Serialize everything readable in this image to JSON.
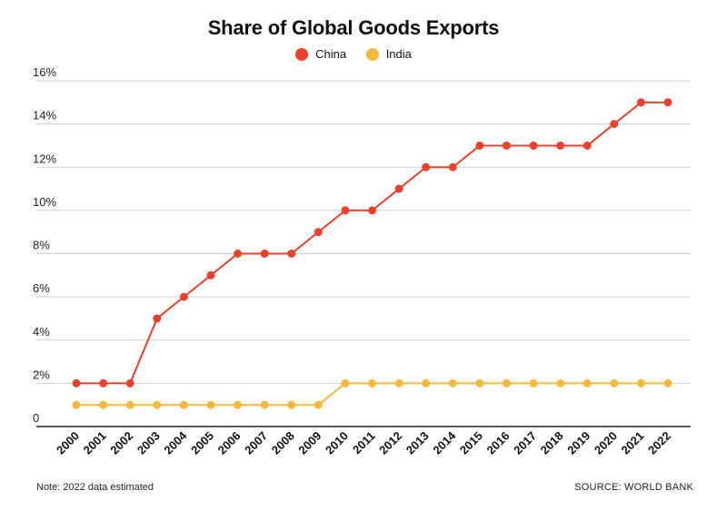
{
  "chart_data": {
    "type": "line",
    "title": "Share of Global Goods Exports",
    "xlabel": "",
    "ylabel": "",
    "ylim": [
      0,
      16
    ],
    "ytick_values": [
      0,
      2,
      4,
      6,
      8,
      10,
      12,
      14,
      16
    ],
    "ytick_labels": [
      "0",
      "2%",
      "4%",
      "6%",
      "8%",
      "10%",
      "12%",
      "14%",
      "16%"
    ],
    "grid": true,
    "legend_position": "top-center",
    "categories": [
      "2000",
      "2001",
      "2002",
      "2003",
      "2004",
      "2005",
      "2006",
      "2007",
      "2008",
      "2009",
      "2010",
      "2011",
      "2012",
      "2013",
      "2014",
      "2015",
      "2016",
      "2017",
      "2018",
      "2019",
      "2020",
      "2021",
      "2022"
    ],
    "series": [
      {
        "name": "China",
        "color": "#e8412c",
        "values": [
          2,
          2,
          2,
          5,
          6,
          7,
          8,
          8,
          8,
          9,
          10,
          10,
          11,
          12,
          12,
          13,
          13,
          13,
          13,
          13,
          14,
          15,
          15
        ]
      },
      {
        "name": "India",
        "color": "#f5b83d",
        "values": [
          1,
          1,
          1,
          1,
          1,
          1,
          1,
          1,
          1,
          1,
          2,
          2,
          2,
          2,
          2,
          2,
          2,
          2,
          2,
          2,
          2,
          2,
          2
        ]
      }
    ]
  },
  "footer": {
    "note": "Note: 2022 data estimated",
    "source": "SOURCE: WORLD BANK"
  }
}
